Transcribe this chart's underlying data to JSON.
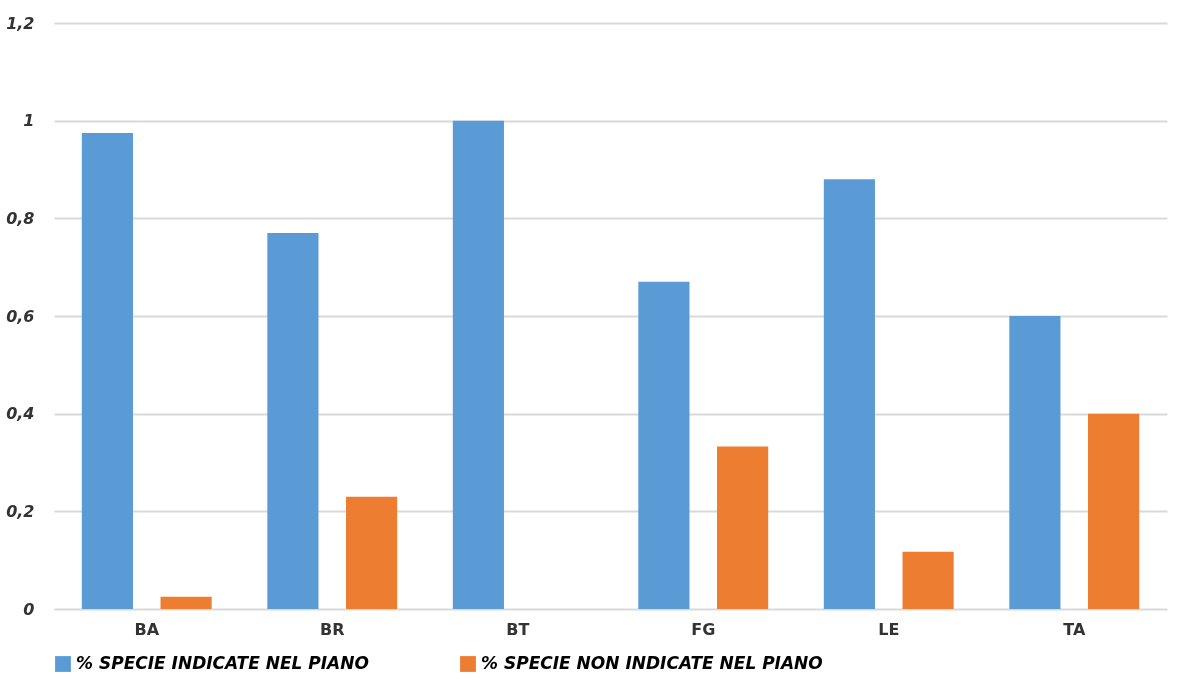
{
  "chart_data": {
    "type": "bar",
    "categories": [
      "BA",
      "BR",
      "BT",
      "FG",
      "LE",
      "TA"
    ],
    "series": [
      {
        "name": "% SPECIE INDICATE NEL PIANO",
        "color": "#5b9bd5",
        "values": [
          0.975,
          0.77,
          1.0,
          0.67,
          0.88,
          0.6
        ]
      },
      {
        "name": "% SPECIE NON INDICATE NEL PIANO",
        "color": "#ed7d31",
        "values": [
          0.025,
          0.23,
          0,
          0.333,
          0.117,
          0.4
        ]
      }
    ],
    "ylim": [
      0,
      1.2
    ],
    "yticks": [
      {
        "value": 0,
        "label": "0"
      },
      {
        "value": 0.2,
        "label": "0,2"
      },
      {
        "value": 0.4,
        "label": "0,4"
      },
      {
        "value": 0.6,
        "label": "0,6"
      },
      {
        "value": 0.8,
        "label": "0,8"
      },
      {
        "value": 1,
        "label": "1"
      },
      {
        "value": 1.2,
        "label": "1,2"
      }
    ],
    "grid": "y",
    "legend": "bottom"
  }
}
